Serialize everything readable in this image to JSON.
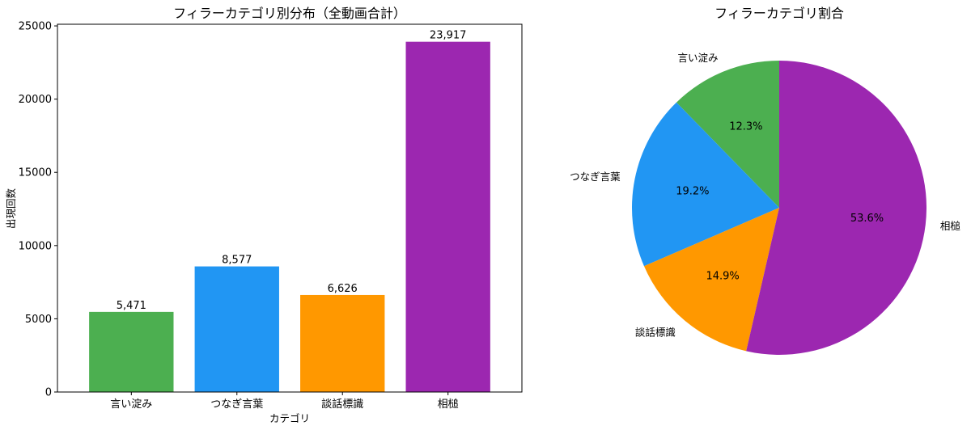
{
  "chart_data": [
    {
      "type": "bar",
      "title": "フィラーカテゴリ別分布（全動画合計）",
      "xlabel": "カテゴリ",
      "ylabel": "出現回数",
      "categories": [
        "言い淀み",
        "つなぎ言葉",
        "談話標識",
        "相槌"
      ],
      "values": [
        5471,
        8577,
        6626,
        23917
      ],
      "value_labels": [
        "5,471",
        "8,577",
        "6,626",
        "23,917"
      ],
      "colors": [
        "#4caf50",
        "#2196f3",
        "#ff9800",
        "#9c27b0"
      ],
      "ylim": [
        0,
        25113
      ],
      "yticks": [
        0,
        5000,
        10000,
        15000,
        20000,
        25000
      ],
      "ytick_labels": [
        "0",
        "5000",
        "10000",
        "15000",
        "20000",
        "25000"
      ],
      "grid": false,
      "legend": "none"
    },
    {
      "type": "pie",
      "title": "フィラーカテゴリ割合",
      "labels": [
        "言い淀み",
        "つなぎ言葉",
        "談話標識",
        "相槌"
      ],
      "values": [
        12.3,
        19.2,
        14.9,
        53.6
      ],
      "pct_labels": [
        "12.3%",
        "19.2%",
        "14.9%",
        "53.6%"
      ],
      "colors": [
        "#4caf50",
        "#2196f3",
        "#ff9800",
        "#9c27b0"
      ],
      "start_angle_deg": 90,
      "direction": "counterclockwise",
      "legend": "none"
    }
  ]
}
